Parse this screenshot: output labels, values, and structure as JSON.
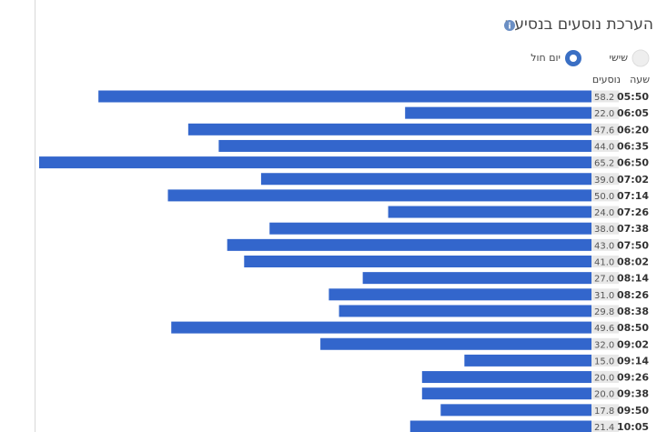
{
  "chart_data": {
    "type": "bar",
    "title": "הערכת נוסעים בנסיעה",
    "options": [
      "שישי",
      "יום חול"
    ],
    "headers": {
      "time": "שעה",
      "value": "נוסעים"
    },
    "color": "#3366cc",
    "categories": [
      "05:50",
      "06:05",
      "06:20",
      "06:35",
      "06:50",
      "07:02",
      "07:14",
      "07:26",
      "07:38",
      "07:50",
      "08:02",
      "08:14",
      "08:26",
      "08:38",
      "08:50",
      "09:02",
      "09:14",
      "09:26",
      "09:38",
      "09:50",
      "10:05"
    ],
    "values": [
      58.2,
      22,
      47.6,
      44,
      65.2,
      39,
      50,
      24,
      38,
      43,
      41,
      27,
      31,
      29.8,
      49.6,
      32,
      15,
      20,
      20,
      17.8,
      21.4
    ],
    "value_labels": [
      "58.2",
      "22.0",
      "47.6",
      "44.0",
      "65.2",
      "39.0",
      "50.0",
      "24.0",
      "38.0",
      "43.0",
      "41.0",
      "27.0",
      "31.0",
      "29.8",
      "49.6",
      "32.0",
      "15.0",
      "20.0",
      "20.0",
      "17.8",
      "21.4"
    ]
  }
}
